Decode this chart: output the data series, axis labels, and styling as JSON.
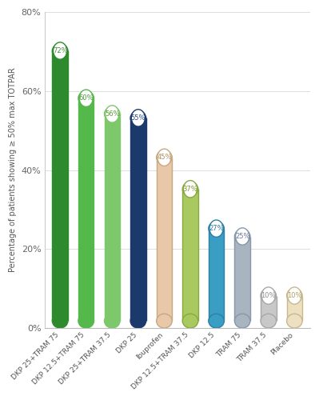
{
  "categories": [
    "DKP 25+TRAM 75",
    "DKP 12.5+TRAM 75",
    "DKP 25+TRAM 37.5",
    "DKP 25",
    "Ibuprofen",
    "DKP 12.5+TRAM 37.5",
    "DKP 12.5",
    "TRAM 75",
    "TRAM 37.5",
    "Placebo"
  ],
  "values": [
    72,
    60,
    56,
    55,
    45,
    37,
    27,
    25,
    10,
    10
  ],
  "bar_colors": [
    "#2d8a2d",
    "#55b84a",
    "#7dc86a",
    "#1b3a6b",
    "#e8c8a8",
    "#a8c860",
    "#3a9ec4",
    "#a8b4c0",
    "#c8c8c8",
    "#ede0c0"
  ],
  "bar_edge_colors": [
    "#2d8a2d",
    "#55b84a",
    "#7dc86a",
    "#1b3a6b",
    "#c8a880",
    "#88a840",
    "#2a80a8",
    "#8898a8",
    "#a8a8a8",
    "#c8b890"
  ],
  "label_text_colors": [
    "#4a8a3a",
    "#4a9a3a",
    "#5a9a3a",
    "#2a4a8a",
    "#b09060",
    "#7a9830",
    "#2a78a0",
    "#6878a0",
    "#909090",
    "#b0a060"
  ],
  "ylabel": "Percentage of patients showing ≥ 50% max TOTPAR",
  "ylim": [
    0,
    80
  ],
  "ytick_labels": [
    "0%",
    "20%",
    "40%",
    "60%",
    "80%"
  ],
  "ytick_values": [
    0,
    20,
    40,
    60,
    80
  ],
  "background_color": "#ffffff",
  "bar_width": 0.6
}
